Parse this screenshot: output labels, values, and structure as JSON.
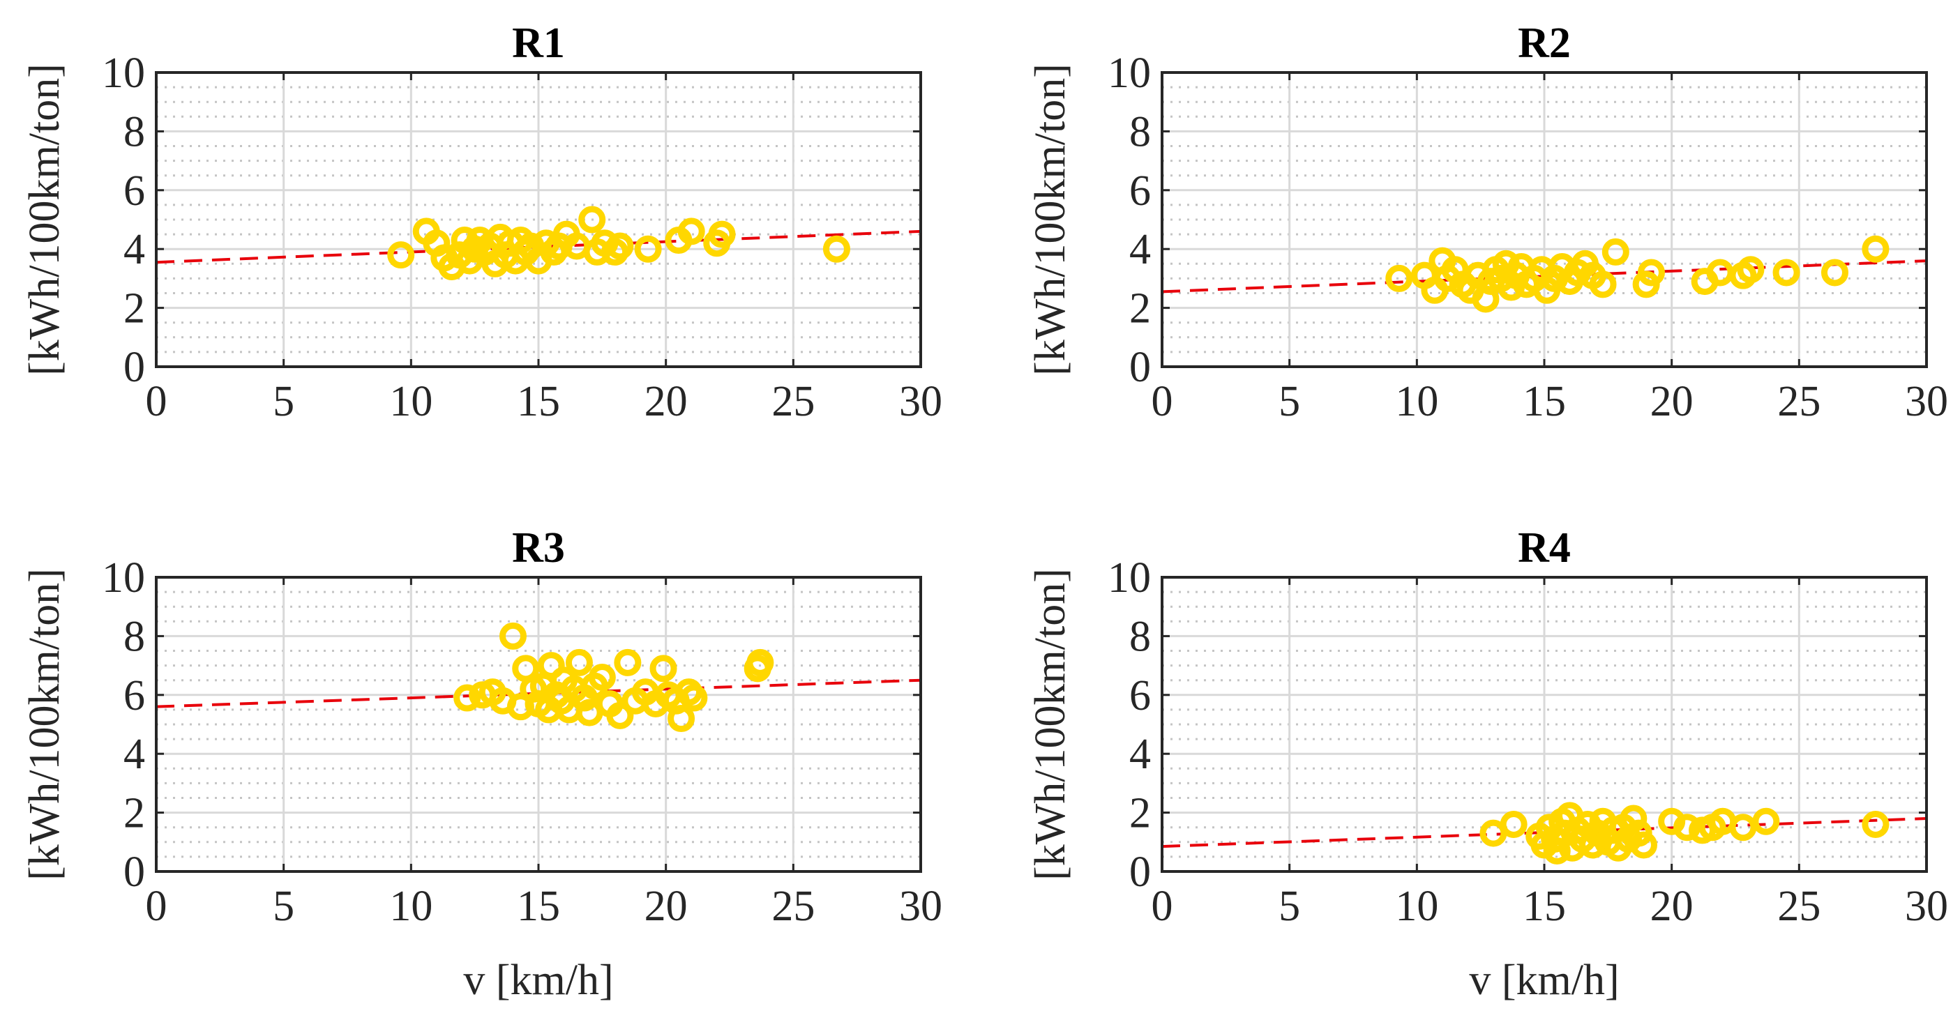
{
  "chart_data": [
    {
      "type": "scatter",
      "title": "R1",
      "xlabel": "",
      "ylabel": "[kWh/100km/ton]",
      "xlim": [
        0,
        30
      ],
      "ylim": [
        0,
        10
      ],
      "xticks": [
        "0",
        "5",
        "10",
        "15",
        "20",
        "25",
        "30"
      ],
      "yticks": [
        "0",
        "2",
        "4",
        "6",
        "8",
        "10"
      ],
      "grid": true,
      "minor_grid": true,
      "marker_color": "#FFD700",
      "fit_color": "#E8000B",
      "fit": {
        "x": [
          0,
          30
        ],
        "y": [
          3.55,
          4.6
        ]
      },
      "x": [
        9.6,
        10.6,
        11.0,
        11.3,
        11.6,
        11.9,
        12.1,
        12.3,
        12.5,
        12.7,
        12.9,
        13.1,
        13.3,
        13.5,
        13.7,
        13.9,
        14.1,
        14.3,
        14.5,
        14.7,
        15.0,
        15.3,
        15.6,
        15.8,
        16.1,
        16.5,
        17.1,
        17.3,
        17.6,
        18.0,
        18.2,
        19.3,
        20.5,
        21.0,
        22.0,
        22.2,
        26.7
      ],
      "y": [
        3.8,
        4.6,
        4.2,
        3.7,
        3.4,
        3.8,
        4.3,
        3.6,
        4.0,
        4.3,
        3.9,
        4.1,
        3.5,
        4.4,
        3.8,
        4.2,
        3.6,
        4.3,
        3.9,
        4.1,
        3.6,
        4.2,
        3.9,
        4.1,
        4.5,
        4.1,
        5.0,
        3.9,
        4.2,
        3.9,
        4.1,
        4.0,
        4.3,
        4.6,
        4.2,
        4.5,
        4.0
      ]
    },
    {
      "type": "scatter",
      "title": "R2",
      "xlabel": "",
      "ylabel": "[kWh/100km/ton]",
      "xlim": [
        0,
        30
      ],
      "ylim": [
        0,
        10
      ],
      "xticks": [
        "0",
        "5",
        "10",
        "15",
        "20",
        "25",
        "30"
      ],
      "yticks": [
        "0",
        "2",
        "4",
        "6",
        "8",
        "10"
      ],
      "grid": true,
      "minor_grid": true,
      "marker_color": "#FFD700",
      "fit_color": "#E8000B",
      "fit": {
        "x": [
          0,
          30
        ],
        "y": [
          2.55,
          3.6
        ]
      },
      "x": [
        9.3,
        10.3,
        10.7,
        11.0,
        11.2,
        11.5,
        11.8,
        12.1,
        12.4,
        12.7,
        12.9,
        13.1,
        13.3,
        13.5,
        13.7,
        13.9,
        14.1,
        14.3,
        14.6,
        14.9,
        15.1,
        15.4,
        15.7,
        16.0,
        16.3,
        16.6,
        16.9,
        17.3,
        17.8,
        19.0,
        19.2,
        21.3,
        21.9,
        22.8,
        23.1,
        24.5,
        26.4,
        28.0
      ],
      "y": [
        3.0,
        3.1,
        2.6,
        3.6,
        3.0,
        3.3,
        2.8,
        2.6,
        3.1,
        2.3,
        2.9,
        3.3,
        3.0,
        3.5,
        2.7,
        3.1,
        3.4,
        2.8,
        3.0,
        3.3,
        2.6,
        3.0,
        3.4,
        2.9,
        3.2,
        3.5,
        3.1,
        2.8,
        3.9,
        2.8,
        3.2,
        2.9,
        3.2,
        3.1,
        3.3,
        3.2,
        3.2,
        4.0
      ]
    },
    {
      "type": "scatter",
      "title": "R3",
      "xlabel": "v [km/h]",
      "ylabel": "[kWh/100km/ton]",
      "xlim": [
        0,
        30
      ],
      "ylim": [
        0,
        10
      ],
      "xticks": [
        "0",
        "5",
        "10",
        "15",
        "20",
        "25",
        "30"
      ],
      "yticks": [
        "0",
        "2",
        "4",
        "6",
        "8",
        "10"
      ],
      "grid": true,
      "minor_grid": true,
      "marker_color": "#FFD700",
      "fit_color": "#E8000B",
      "fit": {
        "x": [
          0,
          30
        ],
        "y": [
          5.6,
          6.5
        ]
      },
      "x": [
        12.2,
        12.8,
        13.2,
        13.6,
        14.0,
        14.3,
        14.5,
        14.8,
        15.0,
        15.2,
        15.4,
        15.5,
        15.7,
        15.9,
        16.0,
        16.2,
        16.4,
        16.6,
        16.8,
        17.0,
        17.2,
        17.5,
        17.8,
        18.2,
        18.5,
        18.8,
        19.2,
        19.6,
        19.9,
        20.1,
        20.4,
        20.6,
        20.9,
        21.1,
        23.6,
        23.7
      ],
      "y": [
        5.9,
        6.0,
        6.1,
        5.8,
        8.0,
        5.6,
        6.9,
        6.2,
        5.7,
        6.3,
        5.5,
        7.0,
        6.0,
        5.8,
        6.5,
        5.5,
        6.2,
        7.1,
        5.9,
        5.4,
        6.3,
        6.6,
        5.7,
        5.3,
        7.1,
        5.8,
        6.1,
        5.7,
        6.9,
        6.0,
        5.8,
        5.2,
        6.1,
        5.9,
        6.9,
        7.1
      ]
    },
    {
      "type": "scatter",
      "title": "R4",
      "xlabel": "v [km/h]",
      "ylabel": "[kWh/100km/ton]",
      "xlim": [
        0,
        30
      ],
      "ylim": [
        0,
        10
      ],
      "xticks": [
        "0",
        "5",
        "10",
        "15",
        "20",
        "25",
        "30"
      ],
      "yticks": [
        "0",
        "2",
        "4",
        "6",
        "8",
        "10"
      ],
      "grid": true,
      "minor_grid": true,
      "marker_color": "#FFD700",
      "fit_color": "#E8000B",
      "fit": {
        "x": [
          0,
          30
        ],
        "y": [
          0.85,
          1.8
        ]
      },
      "x": [
        13.0,
        13.8,
        14.8,
        15.0,
        15.2,
        15.4,
        15.5,
        15.7,
        15.8,
        16.0,
        16.1,
        16.3,
        16.5,
        16.7,
        16.9,
        17.1,
        17.3,
        17.5,
        17.7,
        17.9,
        18.1,
        18.3,
        18.5,
        18.7,
        18.9,
        20.0,
        20.6,
        21.2,
        21.6,
        22.0,
        22.8,
        23.7,
        28.0
      ],
      "y": [
        1.3,
        1.6,
        1.2,
        0.9,
        1.5,
        1.1,
        0.7,
        1.7,
        1.3,
        1.9,
        0.8,
        1.4,
        1.1,
        1.6,
        0.9,
        1.3,
        1.7,
        1.0,
        1.4,
        0.8,
        1.5,
        1.1,
        1.8,
        1.3,
        0.9,
        1.7,
        1.5,
        1.4,
        1.5,
        1.7,
        1.5,
        1.7,
        1.6
      ]
    }
  ]
}
